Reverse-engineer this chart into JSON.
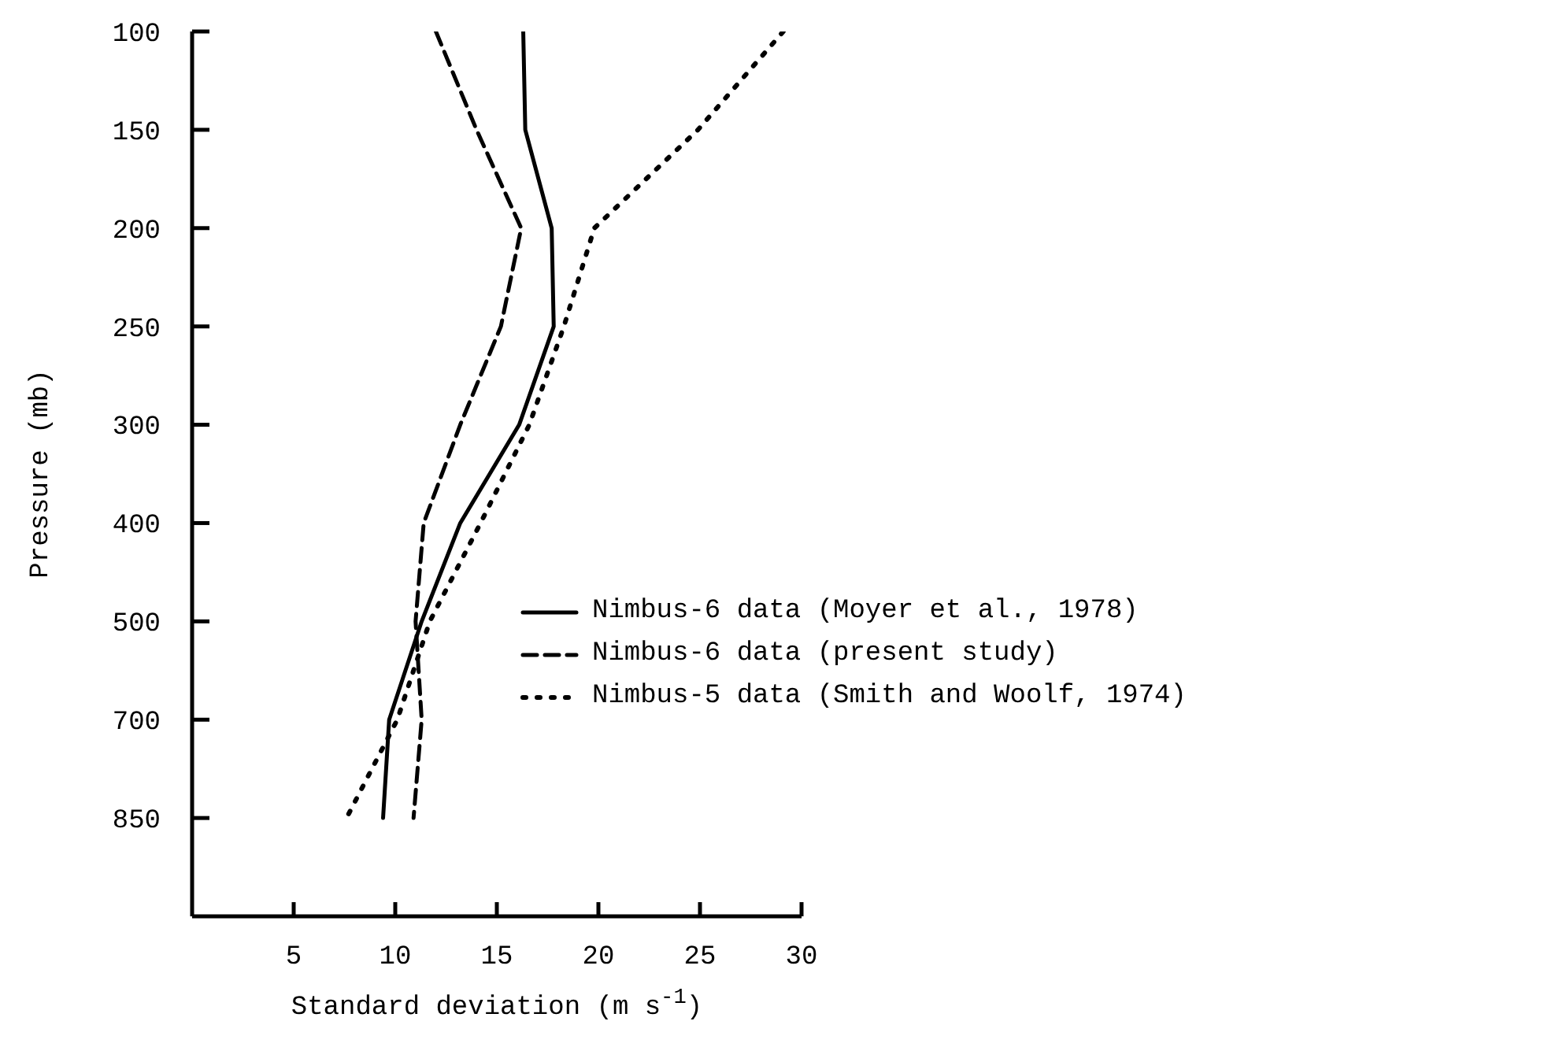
{
  "chart_data": {
    "type": "line",
    "orientation": "horizontal",
    "xlabel": "Standard deviation (m s$^{-1}$)",
    "ylabel": "Pressure (mb)",
    "categories": [
      "100",
      "150",
      "200",
      "250",
      "300",
      "400",
      "500",
      "700",
      "850"
    ],
    "xlim": [
      0,
      30
    ],
    "xticks": [
      5,
      10,
      15,
      20,
      25,
      30
    ],
    "legend": "right",
    "grid": false,
    "marker": "none",
    "series": [
      {
        "name": "Nimbus-6 data (Moyer et al., 1978)",
        "color": "#000000",
        "line_style": "solid",
        "values": [
          16.3,
          16.4,
          17.7,
          17.8,
          16.1,
          13.2,
          11.3,
          9.7,
          9.4
        ]
      },
      {
        "name": "Nimbus-6 data (present study)",
        "color": "#000000",
        "line_style": "dashed",
        "values": [
          12.0,
          14.0,
          16.2,
          15.2,
          13.2,
          11.4,
          11.0,
          11.3,
          10.9
        ]
      },
      {
        "name": "Nimbus-5 data (Smith and Woolf, 1974)",
        "color": "#000000",
        "line_style": "dotted",
        "values": [
          29.1,
          24.9,
          19.8,
          18.3,
          16.6,
          14.2,
          11.7,
          10.1,
          7.6
        ]
      }
    ]
  }
}
